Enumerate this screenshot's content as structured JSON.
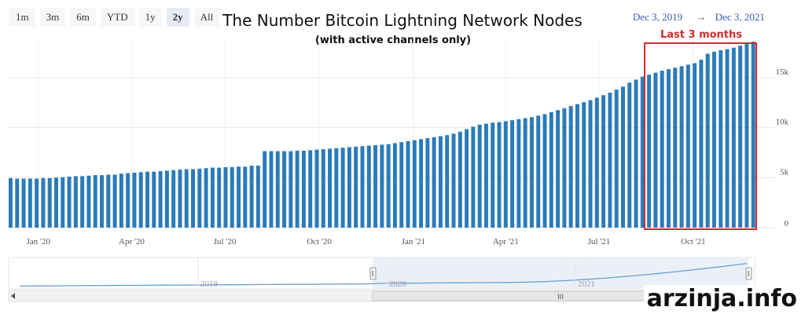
{
  "zoom_buttons": [
    "1m",
    "3m",
    "6m",
    "YTD",
    "1y",
    "2y",
    "All"
  ],
  "zoom_active": "2y",
  "range": {
    "from": "Dec 3, 2019",
    "arrow": "→",
    "to": "Dec 3, 2021"
  },
  "highlight": {
    "label": "Last 3 months"
  },
  "navigator": {
    "years": [
      "2019",
      "2020",
      "2021"
    ],
    "scroll_grip": "III"
  },
  "watermark": "arzinja.info",
  "colors": {
    "bar": "#2b7bb9",
    "highlight": "#cf2d2d",
    "navigator_line": "#6a9fd0"
  },
  "chart_data": {
    "type": "bar",
    "title": "The Number Bitcoin Lightning Network Nodes",
    "subtitle": "(with active channels only)",
    "x_tick_labels": [
      "Jan '20",
      "Apr '20",
      "Jul '20",
      "Oct '20",
      "Jan '21",
      "Apr '21",
      "Jul '21",
      "Oct '21"
    ],
    "y_tick_labels": [
      "0",
      "5k",
      "10k",
      "15k"
    ],
    "ylim": [
      0,
      19000
    ],
    "grid": true,
    "x_start": "2019-12-03",
    "x_end": "2021-12-03",
    "values": [
      4950,
      4900,
      4900,
      4900,
      4900,
      4950,
      4950,
      5000,
      5050,
      5100,
      5150,
      5150,
      5200,
      5250,
      5250,
      5300,
      5300,
      5400,
      5450,
      5500,
      5550,
      5600,
      5600,
      5650,
      5700,
      5750,
      5800,
      5850,
      5850,
      5900,
      5950,
      6000,
      6000,
      6050,
      6050,
      6100,
      6100,
      6200,
      6200,
      7650,
      7650,
      7650,
      7650,
      7650,
      7700,
      7700,
      7750,
      7800,
      7850,
      7900,
      7950,
      8000,
      8050,
      8100,
      8150,
      8200,
      8250,
      8300,
      8350,
      8450,
      8550,
      8650,
      8750,
      8850,
      8950,
      9050,
      9150,
      9250,
      9400,
      9600,
      9850,
      10100,
      10300,
      10400,
      10500,
      10550,
      10650,
      10750,
      10850,
      10950,
      11050,
      11200,
      11350,
      11550,
      11750,
      11950,
      12150,
      12350,
      12550,
      12750,
      13000,
      13250,
      13500,
      13800,
      14100,
      14500,
      14800,
      15100,
      15300,
      15500,
      15700,
      15850,
      16000,
      16150,
      16300,
      16450,
      16800,
      17400,
      17600,
      17750,
      17850,
      18000,
      18200,
      18400,
      18600
    ]
  }
}
